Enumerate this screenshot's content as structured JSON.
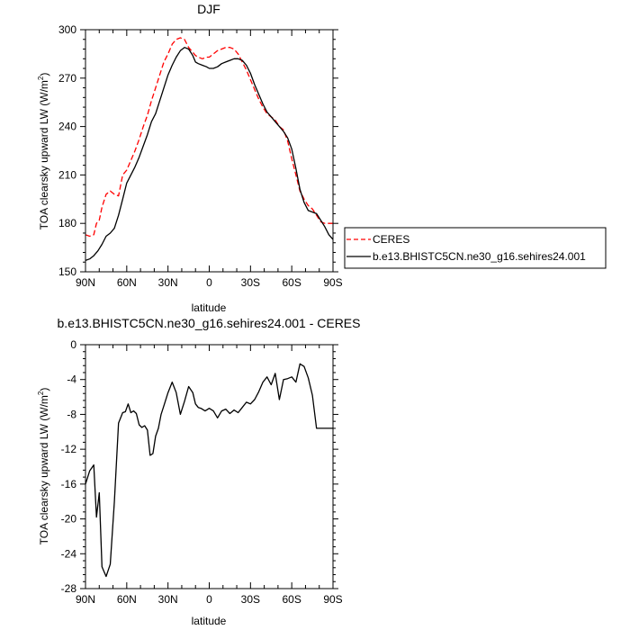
{
  "chart_data": [
    {
      "type": "line",
      "title": "DJF",
      "xlabel": "latitude",
      "ylabel": "TOA clearsky upward LW (W/m",
      "ylabel_sup": "2",
      "ylabel_end": ")",
      "xlim": [
        90,
        -90
      ],
      "ylim": [
        150,
        300
      ],
      "xticks": [
        90,
        60,
        30,
        0,
        -30,
        -60,
        -90
      ],
      "xtick_labels": [
        "90N",
        "60N",
        "30N",
        "0",
        "30S",
        "60S",
        "90S"
      ],
      "yticks": [
        150,
        180,
        210,
        240,
        270,
        300
      ],
      "ytick_labels": [
        "150",
        "180",
        "210",
        "240",
        "270",
        "300"
      ],
      "grid": false,
      "legend_position": "right",
      "series": [
        {
          "name": "CERES",
          "color": "#ff0000",
          "dash": "dashed",
          "x": [
            90,
            87,
            84,
            82,
            80,
            78,
            75,
            72,
            69,
            66,
            63,
            60,
            57,
            54,
            51,
            48,
            45,
            42,
            39,
            36,
            33,
            30,
            27,
            24,
            21,
            18,
            15,
            12,
            10,
            8,
            5,
            2,
            0,
            -3,
            -6,
            -9,
            -12,
            -15,
            -18,
            -21,
            -24,
            -27,
            -30,
            -33,
            -36,
            -39,
            -42,
            -45,
            -48,
            -51,
            -54,
            -57,
            -60,
            -63,
            -66,
            -69,
            -72,
            -75,
            -78,
            -81,
            -84,
            -87,
            -90
          ],
          "y": [
            173,
            172,
            173,
            180,
            182,
            190,
            198,
            200,
            198,
            197,
            210,
            213,
            219,
            225,
            232,
            240,
            247,
            256,
            264,
            272,
            280,
            285,
            291,
            294,
            295,
            294,
            289,
            286,
            284,
            283,
            282,
            283,
            283,
            285,
            287,
            288,
            289,
            289,
            288,
            285,
            280,
            275,
            269,
            263,
            257,
            252,
            248,
            246,
            244,
            240,
            238,
            231,
            220,
            210,
            200,
            195,
            191,
            189,
            185,
            181,
            180,
            180,
            180
          ]
        },
        {
          "name": "b.e13.BHISTC5CN.ne30_g16.sehires24.001",
          "color": "#000000",
          "dash": "solid",
          "x": [
            90,
            87,
            84,
            81,
            78,
            75,
            72,
            69,
            66,
            63,
            60,
            57,
            54,
            51,
            48,
            45,
            42,
            39,
            36,
            33,
            30,
            27,
            24,
            21,
            18,
            15,
            12,
            10,
            8,
            5,
            2,
            0,
            -3,
            -6,
            -9,
            -12,
            -15,
            -18,
            -21,
            -24,
            -27,
            -30,
            -33,
            -36,
            -39,
            -42,
            -45,
            -48,
            -51,
            -54,
            -57,
            -60,
            -63,
            -66,
            -69,
            -72,
            -75,
            -78,
            -81,
            -84,
            -87,
            -90
          ],
          "y": [
            157,
            158,
            160,
            163,
            167,
            172,
            174,
            177,
            185,
            195,
            205,
            210,
            215,
            221,
            228,
            235,
            243,
            248,
            256,
            264,
            272,
            278,
            283,
            287,
            289,
            288,
            284,
            280,
            279,
            278,
            277,
            276,
            276,
            277,
            279,
            280,
            281,
            282,
            282,
            281,
            278,
            273,
            266,
            260,
            254,
            249,
            246,
            243,
            240,
            237,
            233,
            226,
            214,
            201,
            193,
            188,
            187,
            186,
            182,
            178,
            173,
            170
          ]
        }
      ]
    },
    {
      "type": "line",
      "title": "b.e13.BHISTC5CN.ne30_g16.sehires24.001 - CERES",
      "xlabel": "latitude",
      "ylabel": "TOA clearsky upward LW (W/m",
      "ylabel_sup": "2",
      "ylabel_end": ")",
      "xlim": [
        90,
        -90
      ],
      "ylim": [
        -28,
        0
      ],
      "xticks": [
        90,
        60,
        30,
        0,
        -30,
        -60,
        -90
      ],
      "xtick_labels": [
        "90N",
        "60N",
        "30N",
        "0",
        "30S",
        "60S",
        "90S"
      ],
      "yticks": [
        -28,
        -24,
        -20,
        -16,
        -12,
        -8,
        -4,
        0
      ],
      "ytick_labels": [
        "-28",
        "-24",
        "-20",
        "-16",
        "-12",
        "-8",
        "-4",
        "0"
      ],
      "grid": false,
      "series": [
        {
          "color": "#000000",
          "dash": "solid",
          "x": [
            90,
            87,
            84,
            82,
            80,
            78,
            75,
            72,
            69,
            66,
            63,
            61,
            59,
            57,
            55,
            53,
            51,
            49,
            47,
            45,
            43,
            41,
            39,
            37,
            35,
            33,
            30,
            27,
            24,
            21,
            18,
            15,
            12,
            10,
            8,
            6,
            3,
            0,
            -3,
            -6,
            -9,
            -12,
            -15,
            -18,
            -21,
            -24,
            -27,
            -30,
            -33,
            -36,
            -39,
            -42,
            -45,
            -48,
            -51,
            -54,
            -57,
            -60,
            -63,
            -66,
            -69,
            -72,
            -75,
            -78,
            -81,
            -84,
            -87,
            -90
          ],
          "y": [
            -16,
            -14.5,
            -13.8,
            -19.8,
            -17,
            -25.5,
            -26.6,
            -25.2,
            -18,
            -9,
            -7.8,
            -7.7,
            -6.8,
            -7.8,
            -7.6,
            -7.9,
            -9.2,
            -9.5,
            -9.3,
            -9.8,
            -12.7,
            -12.5,
            -10.5,
            -9.6,
            -8,
            -7,
            -5.5,
            -4.3,
            -5.5,
            -8,
            -6.5,
            -4.8,
            -5.5,
            -6.8,
            -7.2,
            -7.3,
            -7.6,
            -7.3,
            -7.6,
            -8.4,
            -7.6,
            -7.4,
            -7.9,
            -7.5,
            -7.8,
            -7.2,
            -6.6,
            -6.8,
            -6.3,
            -5.4,
            -4.3,
            -3.7,
            -4.6,
            -3.3,
            -6.3,
            -4,
            -3.9,
            -3.7,
            -4.3,
            -2.2,
            -2.5,
            -3.8,
            -5.8,
            -9.6,
            -9.6,
            -9.6,
            -9.6,
            -9.6
          ]
        }
      ]
    }
  ]
}
